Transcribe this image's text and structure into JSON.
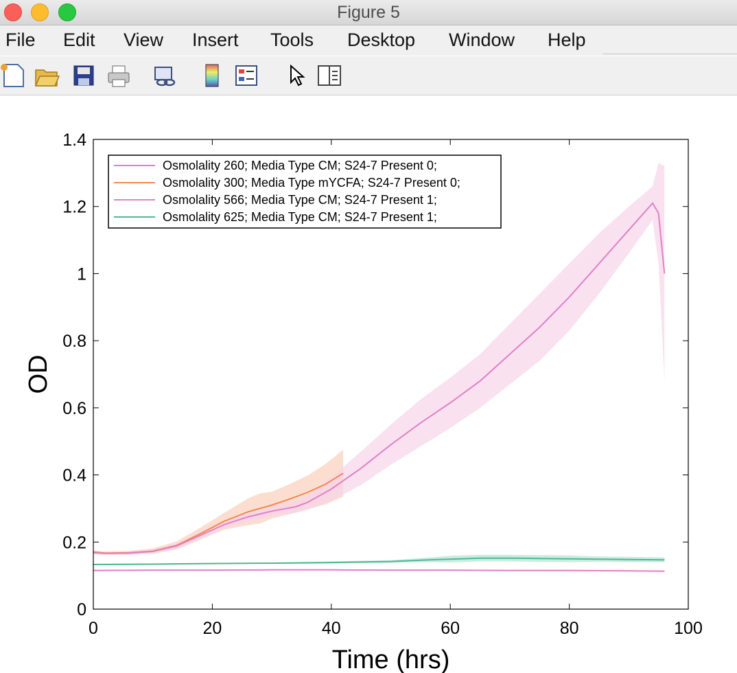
{
  "window": {
    "title": "Figure 5"
  },
  "menu": [
    "File",
    "Edit",
    "View",
    "Insert",
    "Tools",
    "Desktop",
    "Window",
    "Help"
  ],
  "toolbar_icons": [
    "new-figure-icon",
    "open-file-icon",
    "save-icon",
    "print-icon",
    "link-plot-icon",
    "colorbar-icon",
    "legend-icon",
    "pointer-icon",
    "property-editor-icon"
  ],
  "chart_data": {
    "type": "line",
    "title": "",
    "xlabel": "Time (hrs)",
    "ylabel": "OD",
    "xlim": [
      0,
      100
    ],
    "ylim": [
      0,
      1.4
    ],
    "xticks": [
      0,
      20,
      40,
      60,
      80,
      100
    ],
    "yticks": [
      0,
      0.2,
      0.4,
      0.6,
      0.8,
      1,
      1.2,
      1.4
    ],
    "xtick_labels": [
      "0",
      "20",
      "40",
      "60",
      "80",
      "100"
    ],
    "ytick_labels": [
      "0",
      "0.2",
      "0.4",
      "0.6",
      "0.8",
      "1",
      "1.2",
      "1.4"
    ],
    "grid": false,
    "legend_position": "top-left",
    "series": [
      {
        "name": "Osmolality 260; Media Type CM; S24-7 Present 0;",
        "color": "#e57ec8",
        "band_color": "#f0b6df",
        "x": [
          0,
          10,
          20,
          30,
          40,
          50,
          60,
          70,
          80,
          90,
          96
        ],
        "y": [
          0.115,
          0.116,
          0.116,
          0.117,
          0.117,
          0.116,
          0.116,
          0.115,
          0.115,
          0.114,
          0.113
        ],
        "band": [
          0.002,
          0.002,
          0.002,
          0.002,
          0.002,
          0.002,
          0.002,
          0.002,
          0.002,
          0.002,
          0.002
        ]
      },
      {
        "name": "Osmolality 300; Media Type mYCFA; S24-7 Present 0;",
        "color": "#f2874e",
        "band_color": "#fbd0bc",
        "x": [
          0,
          2,
          6,
          10,
          14,
          18,
          22,
          26,
          28,
          30,
          33,
          36,
          39,
          42
        ],
        "y": [
          0.17,
          0.167,
          0.168,
          0.173,
          0.19,
          0.225,
          0.262,
          0.29,
          0.3,
          0.31,
          0.328,
          0.348,
          0.372,
          0.405
        ],
        "band": [
          0.005,
          0.005,
          0.006,
          0.008,
          0.012,
          0.018,
          0.025,
          0.04,
          0.045,
          0.04,
          0.045,
          0.05,
          0.06,
          0.07
        ]
      },
      {
        "name": "Osmolality 566; Media Type CM; S24-7 Present 1;",
        "color": "#e080c8",
        "band_color": "#f7d4ea",
        "x": [
          0,
          2,
          6,
          10,
          14,
          18,
          22,
          26,
          30,
          34,
          36,
          40,
          45,
          50,
          55,
          60,
          65,
          70,
          75,
          80,
          85,
          90,
          94,
          95,
          96
        ],
        "y": [
          0.168,
          0.166,
          0.167,
          0.172,
          0.188,
          0.22,
          0.252,
          0.275,
          0.292,
          0.305,
          0.318,
          0.358,
          0.42,
          0.49,
          0.555,
          0.615,
          0.68,
          0.76,
          0.84,
          0.93,
          1.03,
          1.13,
          1.21,
          1.18,
          1.0
        ],
        "band": [
          0.004,
          0.004,
          0.004,
          0.006,
          0.008,
          0.01,
          0.012,
          0.014,
          0.015,
          0.018,
          0.022,
          0.035,
          0.05,
          0.06,
          0.07,
          0.075,
          0.08,
          0.09,
          0.1,
          0.1,
          0.09,
          0.07,
          0.05,
          0.15,
          0.32
        ]
      },
      {
        "name": "Osmolality 625; Media Type CM; S24-7 Present 1;",
        "color": "#4db892",
        "band_color": "#b7e4d4",
        "x": [
          0,
          10,
          20,
          30,
          40,
          50,
          55,
          60,
          65,
          70,
          75,
          80,
          85,
          90,
          96
        ],
        "y": [
          0.133,
          0.134,
          0.136,
          0.137,
          0.139,
          0.142,
          0.146,
          0.149,
          0.152,
          0.152,
          0.151,
          0.15,
          0.149,
          0.148,
          0.147
        ],
        "band": [
          0.002,
          0.002,
          0.002,
          0.002,
          0.003,
          0.004,
          0.006,
          0.01,
          0.01,
          0.01,
          0.01,
          0.01,
          0.008,
          0.008,
          0.007
        ]
      }
    ]
  }
}
